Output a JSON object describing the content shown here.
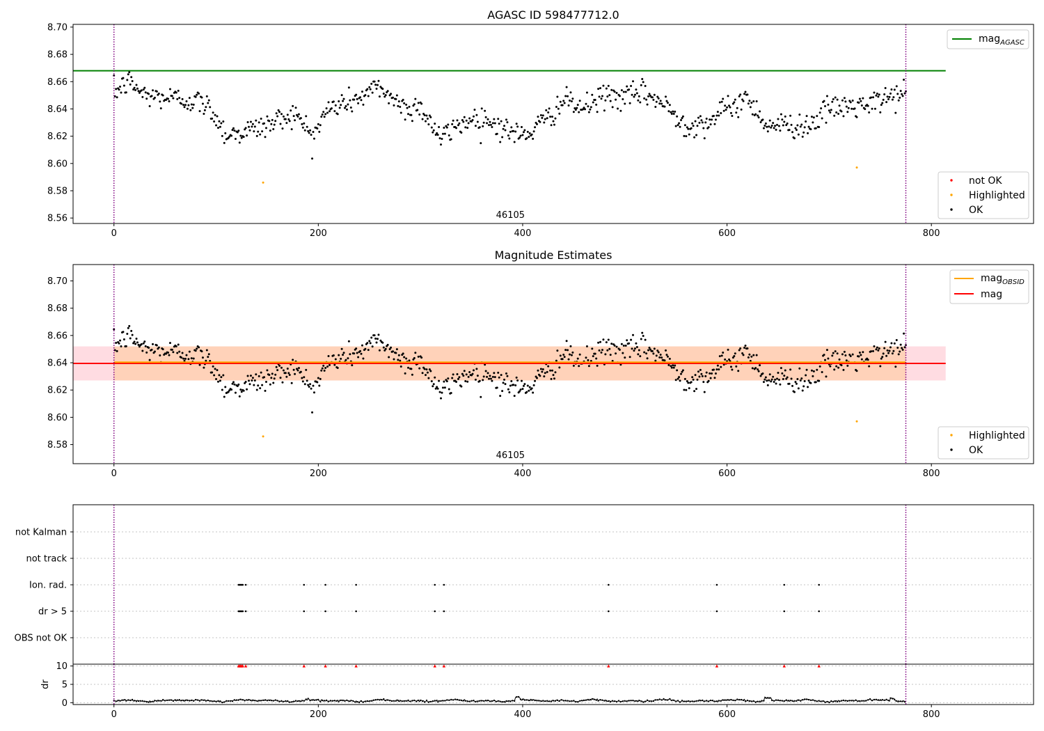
{
  "chart_data": [
    {
      "type": "scatter",
      "title": "AGASC ID 598477712.0",
      "xlim": [
        -40,
        900
      ],
      "ylim": [
        8.556,
        8.702
      ],
      "xticks": [
        0,
        200,
        400,
        600,
        800
      ],
      "yticks": [
        8.56,
        8.58,
        8.6,
        8.62,
        8.64,
        8.66,
        8.68,
        8.7
      ],
      "ytick_decimals": 2,
      "grid": false,
      "obsid_label": "46105",
      "obsid_label_x": 388,
      "obsid_boundaries": [
        0,
        775
      ],
      "obsid_boundary_color": "#800080",
      "reference_line": {
        "name": "mag_AGASC",
        "label_main": "mag",
        "label_sub": "AGASC",
        "value": 8.668,
        "x_range": [
          -40,
          814
        ],
        "color": "#008000"
      },
      "legend_lines": {
        "placement": "top-right",
        "entries": [
          {
            "label_main": "mag",
            "label_sub": "AGASC",
            "color": "#008000"
          }
        ]
      },
      "legend_points": {
        "placement": "bottom-right",
        "entries": [
          {
            "label": "not OK",
            "color": "#ff0000"
          },
          {
            "label": "Highlighted",
            "color": "#ffa500"
          },
          {
            "label": "OK",
            "color": "#000000"
          }
        ]
      },
      "series": [
        {
          "name": "OK",
          "color": "#000000",
          "generated": {
            "n": 776,
            "x_start": 0,
            "x_end": 775,
            "seed": 12345
          }
        },
        {
          "name": "Highlighted",
          "color": "#ffa500",
          "x": [
            146,
            727
          ],
          "y": [
            8.586,
            8.597
          ]
        },
        {
          "name": "not OK",
          "color": "#ff0000",
          "x": [],
          "y": []
        }
      ]
    },
    {
      "type": "scatter",
      "title": "Magnitude Estimates",
      "xlim": [
        -40,
        900
      ],
      "ylim": [
        8.566,
        8.712
      ],
      "xticks": [
        0,
        200,
        400,
        600,
        800
      ],
      "yticks": [
        8.58,
        8.6,
        8.62,
        8.64,
        8.66,
        8.68,
        8.7
      ],
      "ytick_decimals": 2,
      "grid": false,
      "obsid_label": "46105",
      "obsid_label_x": 388,
      "obsid_boundaries": [
        0,
        775
      ],
      "obsid_boundary_color": "#800080",
      "mag_line": {
        "name": "mag",
        "value": 8.6395,
        "band": [
          8.627,
          8.652
        ],
        "x_range": [
          -40,
          814
        ],
        "color": "#ff0000",
        "band_color": "#ffc0cb"
      },
      "mag_obsid_line": {
        "name": "mag_OBSID",
        "value": 8.6395,
        "band": [
          8.627,
          8.652
        ],
        "x_range": [
          0,
          775
        ],
        "color": "#ffa500"
      },
      "legend_lines": {
        "placement": "top-right",
        "entries": [
          {
            "label_main": "mag",
            "label_sub": "OBSID",
            "color": "#ffa500"
          },
          {
            "label_main": "mag",
            "label_sub": "",
            "color": "#ff0000"
          }
        ]
      },
      "legend_points": {
        "placement": "bottom-right",
        "entries": [
          {
            "label": "Highlighted",
            "color": "#ffa500"
          },
          {
            "label": "OK",
            "color": "#000000"
          }
        ]
      },
      "series": [
        {
          "name": "OK",
          "color": "#000000",
          "generated": {
            "n": 776,
            "x_start": 0,
            "x_end": 775,
            "seed": 12345
          }
        },
        {
          "name": "Highlighted",
          "color": "#ffa500",
          "x": [
            146,
            727
          ],
          "y": [
            8.586,
            8.597
          ]
        }
      ]
    },
    {
      "type": "scatter",
      "title": "",
      "xlim": [
        -40,
        900
      ],
      "categories": [
        "OBS not OK",
        "dr > 5",
        "Ion. rad.",
        "not track",
        "not Kalman"
      ],
      "grid": true,
      "obsid_boundaries": [
        0,
        775
      ],
      "obsid_boundary_color": "#800080",
      "flags": [
        {
          "category": "dr > 5",
          "x": [
            122,
            123,
            124,
            125,
            126,
            129,
            186,
            207,
            237,
            314,
            323,
            484,
            590,
            656,
            690
          ]
        },
        {
          "category": "Ion. rad.",
          "x": [
            122,
            123,
            124,
            125,
            126,
            129,
            186,
            207,
            237,
            314,
            323,
            484,
            590,
            656,
            690
          ]
        }
      ]
    },
    {
      "type": "line",
      "title": "",
      "xlim": [
        -40,
        900
      ],
      "ylim": [
        -0.5,
        10.5
      ],
      "xticks": [
        0,
        200,
        400,
        600,
        800
      ],
      "yticks": [
        0,
        5,
        10
      ],
      "ylabel": "dr",
      "grid": true,
      "obsid_boundaries": [
        0,
        775
      ],
      "obsid_boundary_color": "#800080",
      "series": [
        {
          "name": "dr",
          "color": "#000000",
          "generated": {
            "n": 776,
            "x_start": 0,
            "x_end": 775,
            "seed": 777
          }
        },
        {
          "name": "dr > 5",
          "color": "#ff0000",
          "x": [
            122,
            123,
            124,
            125,
            126,
            129,
            186,
            207,
            237,
            314,
            323,
            484,
            590,
            656,
            690
          ],
          "y": [
            10,
            10,
            10,
            10,
            10,
            10,
            10,
            10,
            10,
            10,
            10,
            10,
            10,
            10,
            10
          ]
        }
      ]
    }
  ]
}
